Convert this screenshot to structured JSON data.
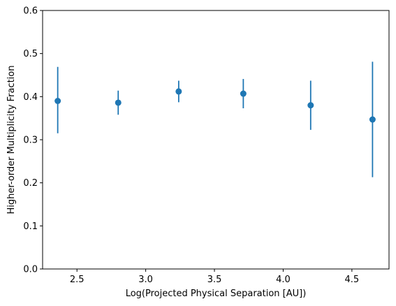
{
  "chart_data": {
    "type": "scatter",
    "xlabel": "Log(Projected Physical Separation [AU])",
    "ylabel": "Higher-order Multiplicity Fraction",
    "xlim": [
      2.25,
      4.77
    ],
    "ylim": [
      0.0,
      0.6
    ],
    "xticks": [
      "2.5",
      "3.0",
      "3.5",
      "4.0",
      "4.5"
    ],
    "yticks": [
      "0.0",
      "0.1",
      "0.2",
      "0.3",
      "0.4",
      "0.5",
      "0.6"
    ],
    "grid": false,
    "series": [
      {
        "color": "#1f77b4",
        "points": [
          {
            "x": 2.36,
            "y": 0.39,
            "err_low": 0.315,
            "err_high": 0.469
          },
          {
            "x": 2.8,
            "y": 0.386,
            "err_low": 0.358,
            "err_high": 0.414
          },
          {
            "x": 3.24,
            "y": 0.412,
            "err_low": 0.387,
            "err_high": 0.437
          },
          {
            "x": 3.71,
            "y": 0.407,
            "err_low": 0.373,
            "err_high": 0.441
          },
          {
            "x": 4.2,
            "y": 0.38,
            "err_low": 0.323,
            "err_high": 0.437
          },
          {
            "x": 4.65,
            "y": 0.347,
            "err_low": 0.213,
            "err_high": 0.481
          }
        ]
      }
    ]
  }
}
